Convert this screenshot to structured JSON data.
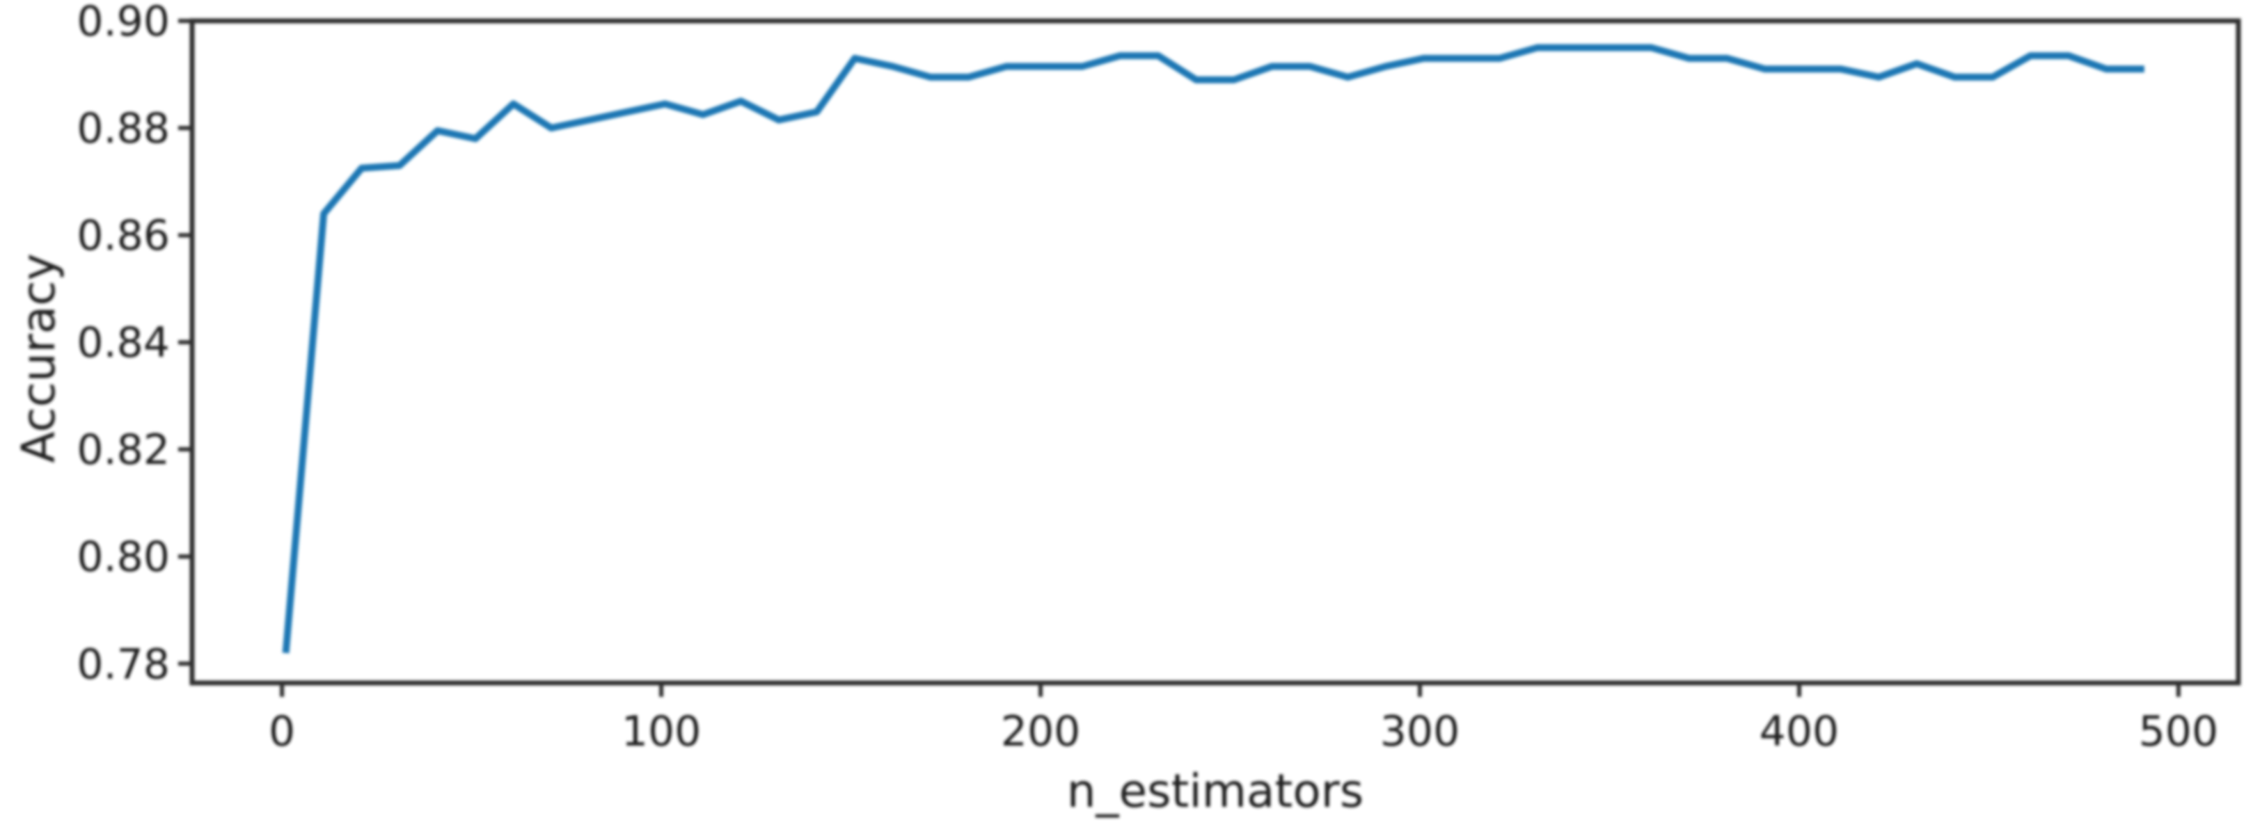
{
  "figure": {
    "background": "#ffffff",
    "text_color": "#000000",
    "spine_color": "#2e2e2e"
  },
  "chart_data": {
    "type": "line",
    "title": "",
    "xlabel": "n_estimators",
    "ylabel": "Accuracy",
    "grid": false,
    "legend": null,
    "line_color": "#1f77b4",
    "xlim": [
      -23.7,
      515.8
    ],
    "ylim": [
      0.7764,
      0.9
    ],
    "xticks": [
      0,
      100,
      200,
      300,
      400,
      500
    ],
    "xtick_labels": [
      "0",
      "100",
      "200",
      "300",
      "400",
      "500"
    ],
    "yticks": [
      0.78,
      0.8,
      0.82,
      0.84,
      0.86,
      0.88,
      0.9
    ],
    "ytick_labels": [
      "0.78",
      "0.80",
      "0.82",
      "0.84",
      "0.86",
      "0.88",
      "0.90"
    ],
    "x": [
      1,
      11,
      21,
      31,
      41,
      51,
      61,
      71,
      81,
      91,
      101,
      111,
      121,
      131,
      141,
      151,
      161,
      171,
      181,
      191,
      201,
      211,
      221,
      231,
      241,
      251,
      261,
      271,
      281,
      291,
      301,
      311,
      321,
      331,
      341,
      351,
      361,
      371,
      381,
      391,
      401,
      411,
      421,
      431,
      441,
      451,
      461,
      471,
      481,
      491
    ],
    "series": [
      {
        "name": "Accuracy",
        "values": [
          0.782,
          0.864,
          0.8725,
          0.873,
          0.8795,
          0.878,
          0.8845,
          0.88,
          0.8815,
          0.883,
          0.8845,
          0.8825,
          0.885,
          0.8815,
          0.883,
          0.893,
          0.8915,
          0.8895,
          0.8895,
          0.8915,
          0.8915,
          0.8915,
          0.8935,
          0.8935,
          0.889,
          0.889,
          0.8915,
          0.8915,
          0.8895,
          0.8915,
          0.893,
          0.893,
          0.893,
          0.895,
          0.895,
          0.895,
          0.895,
          0.893,
          0.893,
          0.891,
          0.891,
          0.891,
          0.8895,
          0.892,
          0.8895,
          0.8895,
          0.8935,
          0.8935,
          0.891,
          0.891
        ]
      }
    ]
  }
}
